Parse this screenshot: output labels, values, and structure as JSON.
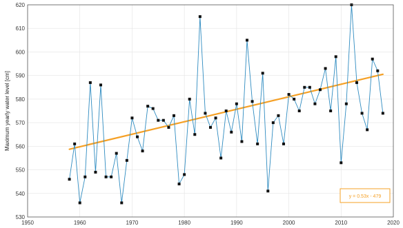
{
  "chart_data": {
    "type": "line",
    "ylabel": "Maximum yearly water level [cm]",
    "xlim": [
      1950,
      2020
    ],
    "ylim": [
      530,
      620
    ],
    "xticks": [
      1950,
      1960,
      1970,
      1980,
      1990,
      2000,
      2010,
      2020
    ],
    "yticks": [
      530,
      540,
      550,
      560,
      570,
      580,
      590,
      600,
      610,
      620
    ],
    "grid": true,
    "series": [
      {
        "x": [
          1958,
          1959,
          1960,
          1961,
          1962,
          1963,
          1964,
          1965,
          1966,
          1967,
          1968,
          1969,
          1970,
          1971,
          1972,
          1973,
          1974,
          1975,
          1976,
          1977,
          1978,
          1979,
          1980,
          1981,
          1982,
          1983,
          1984,
          1985,
          1986,
          1987,
          1988,
          1989,
          1990,
          1991,
          1992,
          1993,
          1994,
          1995,
          1996,
          1997,
          1998,
          1999,
          2000,
          2001,
          2002,
          2003,
          2004,
          2005,
          2006,
          2007,
          2008,
          2009,
          2010,
          2011,
          2012,
          2013,
          2014,
          2015,
          2016,
          2017,
          2018
        ],
        "values": [
          546,
          561,
          536,
          547,
          587,
          549,
          586,
          547,
          547,
          557,
          536,
          554,
          572,
          564,
          558,
          577,
          576,
          571,
          571,
          568,
          573,
          544,
          548,
          580,
          565,
          615,
          574,
          568,
          572,
          555,
          575,
          566,
          578,
          562,
          605,
          579,
          561,
          591,
          541,
          570,
          573,
          561,
          582,
          580,
          575,
          585,
          585,
          578,
          584,
          593,
          575,
          598,
          553,
          578,
          620,
          587,
          574,
          567,
          597,
          592,
          574
        ],
        "color": "#2e8bc0",
        "marker": "square"
      }
    ],
    "trendline": {
      "slope": 0.53,
      "intercept": -479,
      "x_range": [
        1958,
        2018
      ],
      "color": "#f5a025"
    },
    "annotation": {
      "text": "y = 0.53x - 479",
      "color": "#f5a025",
      "box_color": "#f5a025"
    }
  }
}
